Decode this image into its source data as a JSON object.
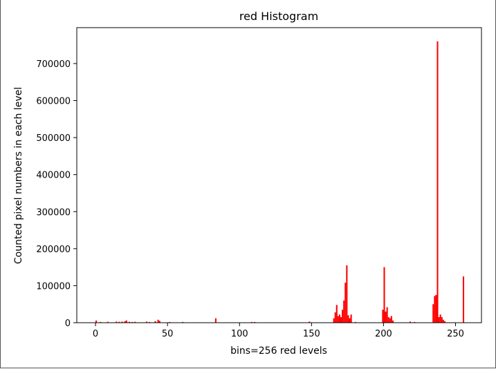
{
  "chart_data": {
    "type": "bar",
    "title": "red Histogram",
    "xlabel": "bins=256 red levels",
    "ylabel": "Counted pixel numbers in each level",
    "xlim": [
      -13,
      268
    ],
    "ylim": [
      0,
      797000
    ],
    "x_ticks": [
      0,
      50,
      100,
      150,
      200,
      250
    ],
    "y_ticks": [
      0,
      100000,
      200000,
      300000,
      400000,
      500000,
      600000,
      700000
    ],
    "y_tick_labels": [
      "0",
      "100000",
      "200000",
      "300000",
      "400000",
      "500000",
      "600000",
      "700000"
    ],
    "grid": false,
    "bar_color": "#ff0000",
    "bins": [
      {
        "x": 0,
        "y": 6000
      },
      {
        "x": 3,
        "y": 2000
      },
      {
        "x": 8,
        "y": 2500
      },
      {
        "x": 14,
        "y": 3000
      },
      {
        "x": 16,
        "y": 2500
      },
      {
        "x": 18,
        "y": 3000
      },
      {
        "x": 20,
        "y": 4000
      },
      {
        "x": 21,
        "y": 6000
      },
      {
        "x": 23,
        "y": 2500
      },
      {
        "x": 25,
        "y": 2000
      },
      {
        "x": 27,
        "y": 2500
      },
      {
        "x": 35,
        "y": 3000
      },
      {
        "x": 37,
        "y": 2000
      },
      {
        "x": 41,
        "y": 4000
      },
      {
        "x": 43,
        "y": 8000
      },
      {
        "x": 44,
        "y": 5000
      },
      {
        "x": 51,
        "y": 2000
      },
      {
        "x": 60,
        "y": 2000
      },
      {
        "x": 83,
        "y": 12000
      },
      {
        "x": 108,
        "y": 2000
      },
      {
        "x": 110,
        "y": 2000
      },
      {
        "x": 148,
        "y": 3000
      },
      {
        "x": 165,
        "y": 12000
      },
      {
        "x": 166,
        "y": 28000
      },
      {
        "x": 167,
        "y": 48000
      },
      {
        "x": 168,
        "y": 18000
      },
      {
        "x": 169,
        "y": 22000
      },
      {
        "x": 170,
        "y": 15000
      },
      {
        "x": 171,
        "y": 35000
      },
      {
        "x": 172,
        "y": 60000
      },
      {
        "x": 173,
        "y": 108000
      },
      {
        "x": 174,
        "y": 155000
      },
      {
        "x": 175,
        "y": 20000
      },
      {
        "x": 176,
        "y": 12000
      },
      {
        "x": 177,
        "y": 22000
      },
      {
        "x": 180,
        "y": 2000
      },
      {
        "x": 199,
        "y": 35000
      },
      {
        "x": 200,
        "y": 150000
      },
      {
        "x": 201,
        "y": 30000
      },
      {
        "x": 202,
        "y": 42000
      },
      {
        "x": 203,
        "y": 15000
      },
      {
        "x": 204,
        "y": 12000
      },
      {
        "x": 205,
        "y": 18000
      },
      {
        "x": 206,
        "y": 6000
      },
      {
        "x": 218,
        "y": 3000
      },
      {
        "x": 221,
        "y": 2000
      },
      {
        "x": 234,
        "y": 50000
      },
      {
        "x": 235,
        "y": 72000
      },
      {
        "x": 236,
        "y": 75000
      },
      {
        "x": 237,
        "y": 760000
      },
      {
        "x": 238,
        "y": 15000
      },
      {
        "x": 239,
        "y": 22000
      },
      {
        "x": 240,
        "y": 15000
      },
      {
        "x": 241,
        "y": 8000
      },
      {
        "x": 242,
        "y": 4000
      },
      {
        "x": 255,
        "y": 125000
      }
    ]
  }
}
